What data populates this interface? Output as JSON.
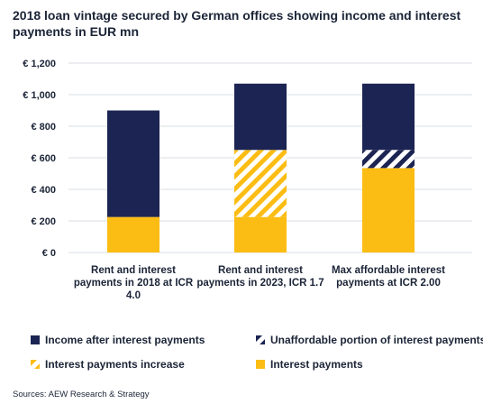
{
  "title": "2018 loan vintage secured by German offices showing income and interest payments in EUR mn",
  "source": "Sources: AEW Research & Strategy",
  "colors": {
    "navy": "#1b2452",
    "yellow": "#fbbd14",
    "grid": "#d9dce3",
    "text": "#1b2437"
  },
  "legend": [
    {
      "key": "income",
      "label": "Income after interest payments",
      "icon": "navy-square"
    },
    {
      "key": "unaffordable",
      "label": "Unaffordable portion of interest payments",
      "icon": "navy-stripes"
    },
    {
      "key": "increase",
      "label": "Interest payments increase",
      "icon": "yellow-stripes"
    },
    {
      "key": "interest",
      "label": "Interest payments",
      "icon": "yellow-square"
    }
  ],
  "chart_data": {
    "type": "bar",
    "stacked": true,
    "categories": [
      [
        "Rent and interest",
        "payments in 2018 at ICR",
        "4.0"
      ],
      [
        "Rent and interest",
        "payments in 2023, ICR 1.7"
      ],
      [
        "Max affordable interest",
        "payments at ICR 2.00"
      ]
    ],
    "y_ticks": [
      "€ 0",
      "€ 200",
      "€ 400",
      "€ 600",
      "€ 800",
      "€ 1,000",
      "€ 1,200"
    ],
    "ylim": [
      0,
      1200
    ],
    "grid": true,
    "series": [
      {
        "name": "Interest payments",
        "key": "interest",
        "values": [
          225,
          225,
          535
        ]
      },
      {
        "name": "Interest payments increase",
        "key": "increase",
        "values": [
          0,
          425,
          0
        ]
      },
      {
        "name": "Unaffordable portion of interest payments",
        "key": "unaffordable",
        "values": [
          0,
          0,
          115
        ]
      },
      {
        "name": "Income after interest payments",
        "key": "income",
        "values": [
          675,
          420,
          420
        ]
      }
    ]
  }
}
